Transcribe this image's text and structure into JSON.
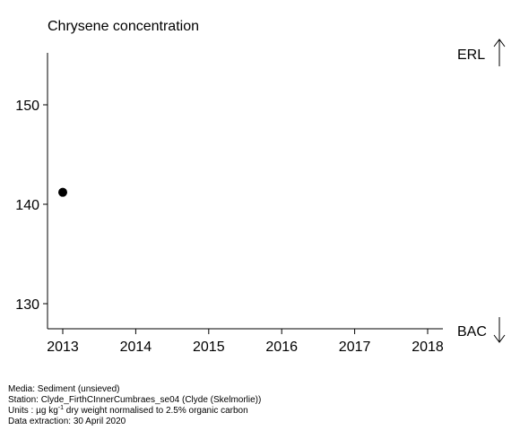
{
  "chart_data": {
    "type": "scatter",
    "title": "Chrysene concentration",
    "xlabel": "",
    "ylabel": "",
    "xlim": [
      2012.8,
      2018.2
    ],
    "ylim": [
      127.3,
      155.3
    ],
    "x_ticks": [
      "2013",
      "2014",
      "2015",
      "2016",
      "2017",
      "2018"
    ],
    "y_ticks": [
      "130",
      "140",
      "150"
    ],
    "points": [
      {
        "x": 2013,
        "y": 141.2
      }
    ],
    "reference_labels": {
      "upper": "ERL",
      "lower": "BAC"
    },
    "grid": false,
    "marker_color": "#000000"
  },
  "footer": {
    "media": "Media: Sediment (unsieved)",
    "station": "Station: Clyde_FirthCInnerCumbraes_se04 (Clyde (Skelmorlie))",
    "units_prefix": "Units : µg kg",
    "units_sup": "-1",
    "units_suffix": " dry weight normalised to 2.5% organic carbon",
    "extraction": "Data extraction: 30 April 2020"
  }
}
